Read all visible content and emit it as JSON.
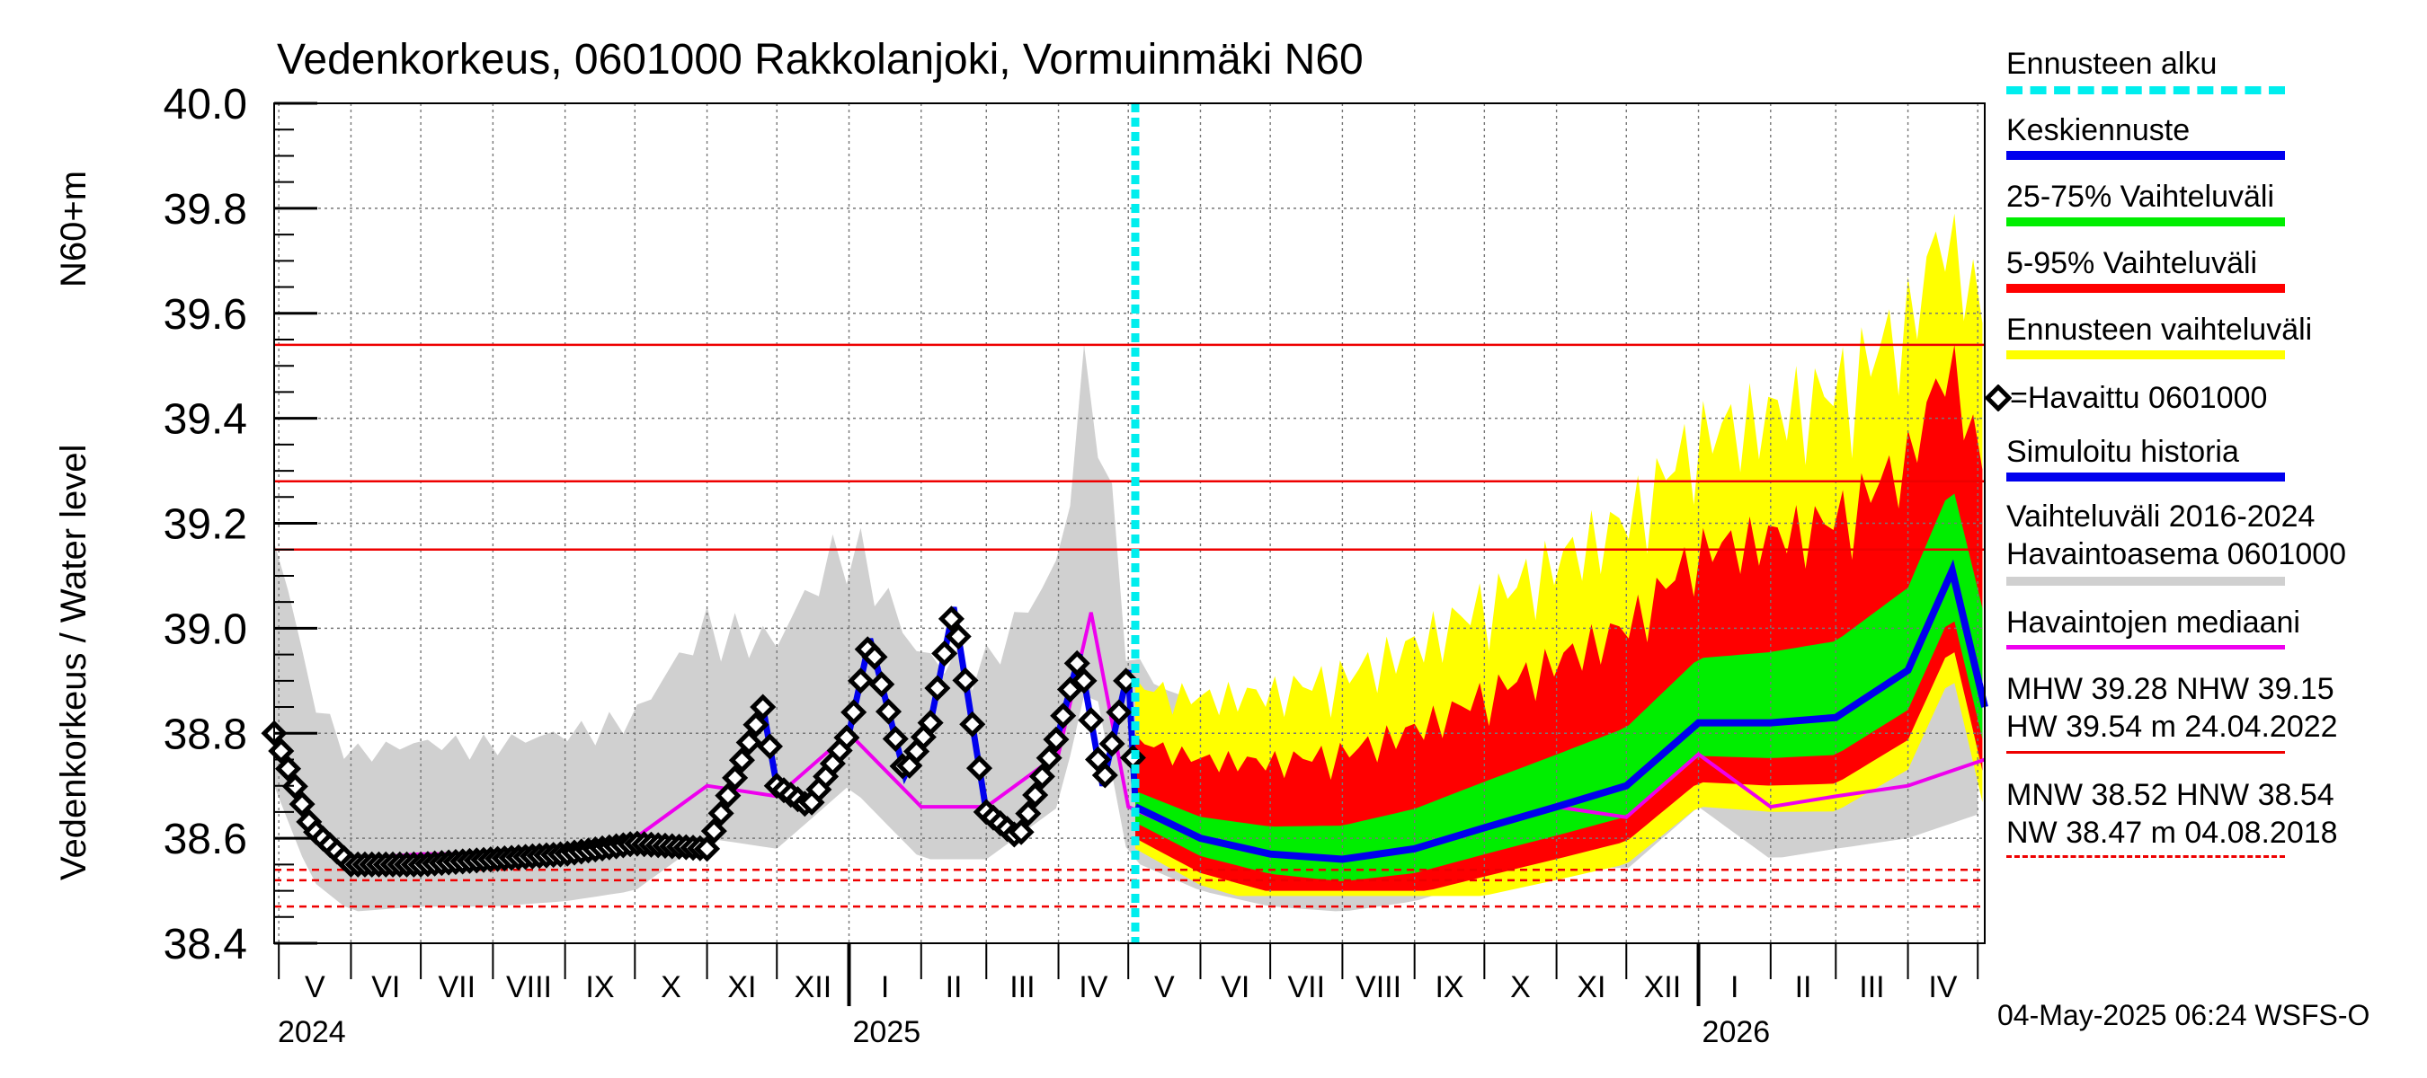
{
  "chart_data": {
    "type": "line",
    "title": "Vedenkorkeus, 0601000 Rakkolanjoki, Vormuinmäki N60",
    "ylabel_lines": [
      "Vedenkorkeus / Water level",
      "N60+m"
    ],
    "ylim": [
      38.4,
      40.0
    ],
    "yticks": [
      "38.4",
      "38.6",
      "38.8",
      "39.0",
      "39.2",
      "39.4",
      "39.6",
      "39.8",
      "40.0"
    ],
    "x_range": [
      "2024-04-29",
      "2026-05-04"
    ],
    "month_labels": [
      "V",
      "VI",
      "VII",
      "VIII",
      "IX",
      "X",
      "XI",
      "XII",
      "I",
      "II",
      "III",
      "IV",
      "V",
      "VI",
      "VII",
      "VIII",
      "IX",
      "X",
      "XI",
      "XII",
      "I",
      "II",
      "III",
      "IV"
    ],
    "year_labels": [
      "2024",
      "2025",
      "2026"
    ],
    "forecast_start": "2025-05-04",
    "reference_levels": [
      {
        "name": "HW",
        "value": 39.54
      },
      {
        "name": "MHW",
        "value": 39.28
      },
      {
        "name": "NHW",
        "value": 39.15
      },
      {
        "name": "HNW",
        "value": 38.54
      },
      {
        "name": "MNW",
        "value": 38.52
      },
      {
        "name": "NW",
        "value": 38.47
      }
    ],
    "series": [
      {
        "name": "Keskiennuste",
        "color": "#0000ee",
        "x": [
          "2025-05-04",
          "2025-06-01",
          "2025-07-01",
          "2025-08-01",
          "2025-09-01",
          "2025-10-01",
          "2025-11-01",
          "2025-12-01",
          "2026-01-01",
          "2026-02-01",
          "2026-03-01",
          "2026-04-01",
          "2026-04-20",
          "2026-05-04"
        ],
        "values": [
          38.66,
          38.6,
          38.57,
          38.56,
          38.58,
          38.62,
          38.66,
          38.7,
          38.82,
          38.82,
          38.83,
          38.92,
          39.11,
          38.85
        ]
      },
      {
        "name": "Havaittu 0601000",
        "color": "#000000",
        "x": [
          "2024-04-29",
          "2024-05-15",
          "2024-06-01",
          "2024-07-01",
          "2024-08-01",
          "2024-09-01",
          "2024-10-01",
          "2024-11-01",
          "2024-11-25",
          "2024-12-01",
          "2024-12-15",
          "2025-01-01",
          "2025-01-10",
          "2025-01-25",
          "2025-02-05",
          "2025-02-15",
          "2025-03-01",
          "2025-03-15",
          "2025-04-01",
          "2025-04-10",
          "2025-04-20",
          "2025-05-01",
          "2025-05-04"
        ],
        "values": [
          38.8,
          38.62,
          38.55,
          38.55,
          38.56,
          38.57,
          38.59,
          38.58,
          38.85,
          38.7,
          38.66,
          38.8,
          38.98,
          38.72,
          38.82,
          39.04,
          38.65,
          38.6,
          38.8,
          38.95,
          38.7,
          38.92,
          38.67
        ]
      },
      {
        "name": "Havaintojen mediaani",
        "color": "#ee00ee",
        "x": [
          "2024-04-29",
          "2024-05-15",
          "2024-06-01",
          "2024-07-01",
          "2024-08-01",
          "2024-09-01",
          "2024-10-01",
          "2024-11-01",
          "2024-12-01",
          "2025-01-01",
          "2025-02-01",
          "2025-03-01",
          "2025-04-01",
          "2025-04-15",
          "2025-05-01",
          "2025-06-01",
          "2025-07-01",
          "2025-08-01",
          "2025-09-01",
          "2025-10-01",
          "2025-11-01",
          "2025-12-01",
          "2026-01-01",
          "2026-02-01",
          "2026-03-01",
          "2026-04-01",
          "2026-05-04"
        ],
        "values": [
          38.8,
          38.62,
          38.56,
          38.57,
          38.57,
          38.58,
          38.6,
          38.7,
          38.68,
          38.8,
          38.66,
          38.66,
          38.76,
          39.03,
          38.66,
          38.6,
          38.57,
          38.56,
          38.58,
          38.62,
          38.66,
          38.64,
          38.76,
          38.66,
          38.68,
          38.7,
          38.75
        ]
      }
    ],
    "bands": [
      {
        "name": "Vaihteluväli 2016-2024 Havaintoasema 0601000",
        "color": "#d0d0d0"
      },
      {
        "name": "Ennusteen vaihteluväli",
        "color": "#ffff00"
      },
      {
        "name": "5-95% Vaihteluväli",
        "color": "#ff0000"
      },
      {
        "name": "25-75% Vaihteluväli",
        "color": "#00ee00"
      }
    ]
  },
  "legend": {
    "forecast_start": "Ennusteen alku",
    "mean_forecast": "Keskiennuste",
    "range_25_75": "25-75% Vaihteluväli",
    "range_5_95": "5-95% Vaihteluväli",
    "forecast_range": "Ennusteen vaihteluväli",
    "observed": "=Havaittu 0601000",
    "simulated": "Simuloitu historia",
    "hist_range_1": "Vaihteluväli 2016-2024",
    "hist_range_2": " Havaintoasema 0601000",
    "median": "Havaintojen mediaani"
  },
  "stats": {
    "line1": "MHW  39.28 NHW  39.15",
    "line2": "HW  39.54 m 24.04.2022",
    "line3": "MNW  38.52 HNW  38.54",
    "line4": "NW  38.47 m 04.08.2018"
  },
  "footer": "04-May-2025 06:24 WSFS-O",
  "colors": {
    "forecast_start": "#00eeee",
    "mean": "#0000ee",
    "p25_75": "#00ee00",
    "p5_95": "#ff0000",
    "range": "#ffff00",
    "history": "#d0d0d0",
    "median": "#ee00ee",
    "observed": "#000000",
    "reference": "#ee0000"
  }
}
